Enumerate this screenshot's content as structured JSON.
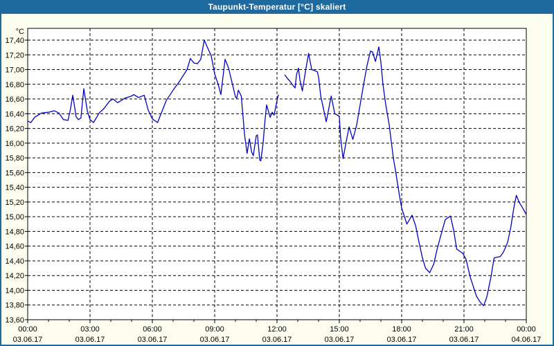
{
  "window": {
    "title": "Taupunkt-Temperatur [°C] skaliert"
  },
  "colors": {
    "titlebar": "#1e6a9e",
    "title_text": "#ffffff",
    "window_bg": "#fdfdef",
    "plot_bg": "#ffffff",
    "border": "#1e6a9e",
    "grid": "#000000",
    "axis_text": "#000000",
    "line": "#0000c0"
  },
  "chart_data": {
    "type": "line",
    "title": "Taupunkt-Temperatur [°C] skaliert",
    "y_unit_label": "°C",
    "ylim": [
      13.6,
      17.4
    ],
    "y_tick_step": 0.2,
    "y_tick_labels": [
      "17,40",
      "17,20",
      "17,00",
      "16,80",
      "16,60",
      "16,40",
      "16,20",
      "16,00",
      "15,80",
      "15,60",
      "15,40",
      "15,20",
      "15,00",
      "14,80",
      "14,60",
      "14,40",
      "14,20",
      "14,00",
      "13,80",
      "13,60"
    ],
    "y_tick_values": [
      17.4,
      17.2,
      17.0,
      16.8,
      16.6,
      16.4,
      16.2,
      16.0,
      15.8,
      15.6,
      15.4,
      15.2,
      15.0,
      14.8,
      14.6,
      14.4,
      14.2,
      14.0,
      13.8,
      13.6
    ],
    "xlim_hours": [
      0,
      24
    ],
    "x_minor_tick_every_hours": 1,
    "x_ticks": [
      {
        "hour": 0,
        "time": "00:00",
        "date": "03.06.17"
      },
      {
        "hour": 3,
        "time": "03:00",
        "date": "03.06.17"
      },
      {
        "hour": 6,
        "time": "06:00",
        "date": "03.06.17"
      },
      {
        "hour": 9,
        "time": "09:00",
        "date": "03.06.17"
      },
      {
        "hour": 12,
        "time": "12:00",
        "date": "03.06.17"
      },
      {
        "hour": 15,
        "time": "15:00",
        "date": "03.06.17"
      },
      {
        "hour": 18,
        "time": "18:00",
        "date": "03.06.17"
      },
      {
        "hour": 21,
        "time": "21:00",
        "date": "03.06.17"
      },
      {
        "hour": 24,
        "time": "00:00",
        "date": "04.06.17"
      }
    ],
    "grid": "dashed",
    "legend": "none",
    "series": [
      {
        "name": "Taupunkt-Temperatur",
        "segments": [
          [
            [
              0,
              16.3
            ],
            [
              0.15,
              16.28
            ],
            [
              0.33,
              16.35
            ],
            [
              0.67,
              16.41
            ],
            [
              1.0,
              16.42
            ],
            [
              1.28,
              16.44
            ],
            [
              1.5,
              16.41
            ],
            [
              1.72,
              16.32
            ],
            [
              1.94,
              16.31
            ],
            [
              2.05,
              16.45
            ],
            [
              2.17,
              16.65
            ],
            [
              2.33,
              16.36
            ],
            [
              2.44,
              16.32
            ],
            [
              2.56,
              16.34
            ],
            [
              2.7,
              16.74
            ],
            [
              2.87,
              16.44
            ],
            [
              3.0,
              16.32
            ],
            [
              3.17,
              16.28
            ],
            [
              3.44,
              16.41
            ],
            [
              3.67,
              16.47
            ],
            [
              3.94,
              16.57
            ],
            [
              4.11,
              16.6
            ],
            [
              4.33,
              16.55
            ],
            [
              4.67,
              16.61
            ],
            [
              5.0,
              16.64
            ],
            [
              5.11,
              16.66
            ],
            [
              5.33,
              16.62
            ],
            [
              5.61,
              16.65
            ],
            [
              5.8,
              16.45
            ],
            [
              6.0,
              16.33
            ],
            [
              6.25,
              16.28
            ],
            [
              6.67,
              16.58
            ],
            [
              7.0,
              16.72
            ],
            [
              7.33,
              16.85
            ],
            [
              7.67,
              17.0
            ],
            [
              7.83,
              17.15
            ],
            [
              8.0,
              17.09
            ],
            [
              8.17,
              17.08
            ],
            [
              8.33,
              17.14
            ],
            [
              8.5,
              17.4
            ],
            [
              8.67,
              17.29
            ],
            [
              8.83,
              17.19
            ],
            [
              9.0,
              16.94
            ],
            [
              9.17,
              16.8
            ],
            [
              9.3,
              16.66
            ],
            [
              9.5,
              17.14
            ],
            [
              9.67,
              17.02
            ],
            [
              9.83,
              16.83
            ],
            [
              10.0,
              16.63
            ],
            [
              10.06,
              16.61
            ],
            [
              10.14,
              16.72
            ],
            [
              10.28,
              16.64
            ],
            [
              10.44,
              16.11
            ],
            [
              10.56,
              15.86
            ],
            [
              10.67,
              16.06
            ],
            [
              10.78,
              15.88
            ],
            [
              10.86,
              15.83
            ],
            [
              11.0,
              16.1
            ],
            [
              11.06,
              16.11
            ],
            [
              11.17,
              15.77
            ],
            [
              11.22,
              15.76
            ],
            [
              11.33,
              16.0
            ],
            [
              11.42,
              16.3
            ],
            [
              11.5,
              16.52
            ],
            [
              11.67,
              16.35
            ],
            [
              11.77,
              16.42
            ],
            [
              11.86,
              16.38
            ],
            [
              12.0,
              16.58
            ],
            [
              12.07,
              16.66
            ]
          ],
          [
            [
              12.37,
              16.93
            ],
            [
              12.5,
              16.88
            ],
            [
              12.6,
              16.85
            ],
            [
              12.81,
              16.77
            ],
            [
              12.87,
              16.75
            ],
            [
              12.94,
              16.93
            ],
            [
              13.03,
              17.02
            ],
            [
              13.11,
              16.85
            ],
            [
              13.22,
              16.71
            ],
            [
              13.39,
              17.01
            ],
            [
              13.52,
              17.22
            ],
            [
              13.67,
              17.0
            ],
            [
              13.94,
              16.97
            ],
            [
              14.0,
              16.9
            ],
            [
              14.11,
              16.63
            ],
            [
              14.22,
              16.49
            ],
            [
              14.37,
              16.29
            ],
            [
              14.61,
              16.64
            ],
            [
              14.78,
              16.4
            ],
            [
              14.91,
              16.38
            ],
            [
              15.0,
              16.36
            ],
            [
              15.06,
              16.08
            ],
            [
              15.18,
              15.79
            ],
            [
              15.33,
              16.02
            ],
            [
              15.47,
              16.22
            ],
            [
              15.65,
              16.05
            ],
            [
              15.83,
              16.24
            ],
            [
              16.0,
              16.52
            ],
            [
              16.17,
              16.8
            ],
            [
              16.33,
              17.05
            ],
            [
              16.5,
              17.25
            ],
            [
              16.6,
              17.24
            ],
            [
              16.74,
              17.11
            ],
            [
              16.9,
              17.31
            ],
            [
              17.0,
              17.1
            ],
            [
              17.1,
              16.8
            ],
            [
              17.22,
              16.55
            ],
            [
              17.32,
              16.38
            ],
            [
              17.4,
              16.25
            ],
            [
              17.5,
              16.02
            ],
            [
              17.6,
              15.8
            ],
            [
              17.72,
              15.6
            ],
            [
              17.83,
              15.4
            ],
            [
              17.94,
              15.21
            ],
            [
              18.0,
              15.12
            ],
            [
              18.25,
              14.9
            ],
            [
              18.5,
              15.02
            ],
            [
              18.67,
              14.88
            ],
            [
              18.83,
              14.66
            ],
            [
              19.0,
              14.44
            ],
            [
              19.15,
              14.3
            ],
            [
              19.35,
              14.24
            ],
            [
              19.55,
              14.36
            ],
            [
              19.7,
              14.55
            ],
            [
              19.9,
              14.76
            ],
            [
              20.1,
              14.96
            ],
            [
              20.35,
              15.01
            ],
            [
              20.5,
              14.82
            ],
            [
              20.65,
              14.56
            ],
            [
              20.8,
              14.53
            ],
            [
              20.95,
              14.5
            ],
            [
              21.1,
              14.42
            ],
            [
              21.3,
              14.18
            ],
            [
              21.6,
              13.92
            ],
            [
              21.8,
              13.83
            ],
            [
              21.95,
              13.79
            ],
            [
              22.1,
              13.91
            ],
            [
              22.3,
              14.18
            ],
            [
              22.45,
              14.44
            ],
            [
              22.6,
              14.45
            ],
            [
              22.75,
              14.46
            ],
            [
              22.9,
              14.52
            ],
            [
              23.1,
              14.65
            ],
            [
              23.25,
              14.85
            ],
            [
              23.4,
              15.12
            ],
            [
              23.52,
              15.29
            ],
            [
              23.65,
              15.2
            ],
            [
              23.8,
              15.13
            ],
            [
              24.0,
              15.03
            ]
          ]
        ]
      }
    ]
  }
}
